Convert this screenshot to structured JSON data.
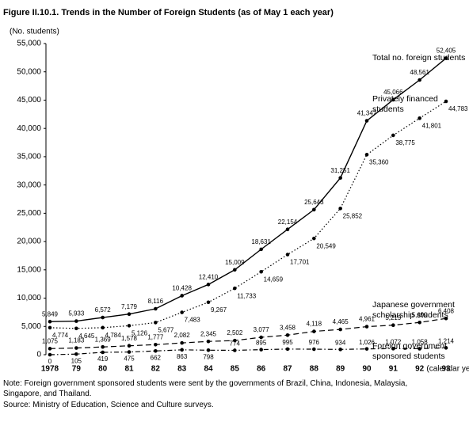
{
  "chart_data": {
    "type": "line",
    "title": "Figure II.10.1. Trends in the Number of Foreign Students (as of May 1 each year)",
    "y_label": "(No. students)",
    "x_label": "(calendar year)",
    "categories": [
      "1978",
      "79",
      "80",
      "81",
      "82",
      "83",
      "84",
      "85",
      "86",
      "87",
      "88",
      "89",
      "90",
      "91",
      "92",
      "93"
    ],
    "ylim": [
      0,
      55000
    ],
    "yticks": [
      0,
      {
        "value": 5000,
        "label": "5,000"
      },
      {
        "value": 10000,
        "label": "10,000"
      },
      {
        "value": 15000,
        "label": "15,000"
      },
      {
        "value": 20000,
        "label": "20,000"
      },
      {
        "value": 25000,
        "label": "25,000"
      },
      {
        "value": 30000,
        "label": "30,000"
      },
      {
        "value": 35000,
        "label": "35,000"
      },
      {
        "value": 40000,
        "label": "40,000"
      },
      {
        "value": 45000,
        "label": "45,000"
      },
      {
        "value": 50000,
        "label": "50,000"
      },
      {
        "value": 55000,
        "label": "55,000"
      }
    ],
    "series": [
      {
        "name": "Total no. foreign students",
        "color": "#000000",
        "line_style": "solid",
        "values": [
          5849,
          5933,
          6572,
          7179,
          8116,
          10428,
          12410,
          15009,
          18631,
          22154,
          25643,
          31251,
          41347,
          45066,
          48561,
          52405
        ],
        "value_labels": [
          "5,849",
          "5,933",
          "6,572",
          "7,179",
          "8,116",
          "10,428",
          "12,410",
          "15,009",
          "18,631",
          "22,154",
          "25,643",
          "31,251",
          "41,347",
          "45,066",
          "48,561",
          "52,405"
        ]
      },
      {
        "name": "Privately financed students",
        "color": "#000000",
        "line_style": "dotted",
        "values": [
          4774,
          4645,
          4784,
          5126,
          5677,
          7483,
          9267,
          11733,
          14659,
          17701,
          20549,
          25852,
          35360,
          38775,
          41801,
          44783
        ],
        "value_labels": [
          "4,774",
          "4,645",
          "4,784",
          "5,126",
          "5,677",
          "7,483",
          "9,267",
          "11,733",
          "14,659",
          "17,701",
          "20,549",
          "25,852",
          "35,360",
          "38,775",
          "41,801",
          "44,783"
        ]
      },
      {
        "name": "Japanese government scholarship students",
        "color": "#000000",
        "line_style": "dashed",
        "values": [
          1075,
          1183,
          1369,
          1578,
          1777,
          2082,
          2345,
          2502,
          3077,
          3458,
          4118,
          4465,
          4961,
          5219,
          5699,
          6408
        ],
        "value_labels": [
          "1,075",
          "1,183",
          "1,369",
          "1,578",
          "1,777",
          "2,082",
          "2,345",
          "2,502",
          "3,077",
          "3,458",
          "4,118",
          "4,465",
          "4,961",
          "5,219",
          "5,699",
          "6,408"
        ]
      },
      {
        "name": "Foreign government sponsored students",
        "color": "#000000",
        "line_style": "dashdot",
        "values": [
          0,
          105,
          419,
          475,
          662,
          863,
          798,
          774,
          895,
          995,
          976,
          934,
          1026,
          1072,
          1058,
          1214
        ],
        "value_labels": [
          "0",
          "105",
          "419",
          "475",
          "662",
          "863",
          "798",
          "774",
          "895",
          "995",
          "976",
          "934",
          "1,026",
          "1,072",
          "1,058",
          "1,214"
        ]
      }
    ],
    "notes": [
      "Note: Foreign government sponsored students were sent by the governments of Brazil, China, Indonesia, Malaysia, Singapore, and Thailand.",
      "Source: Ministry of Education, Science and Culture surveys."
    ]
  }
}
